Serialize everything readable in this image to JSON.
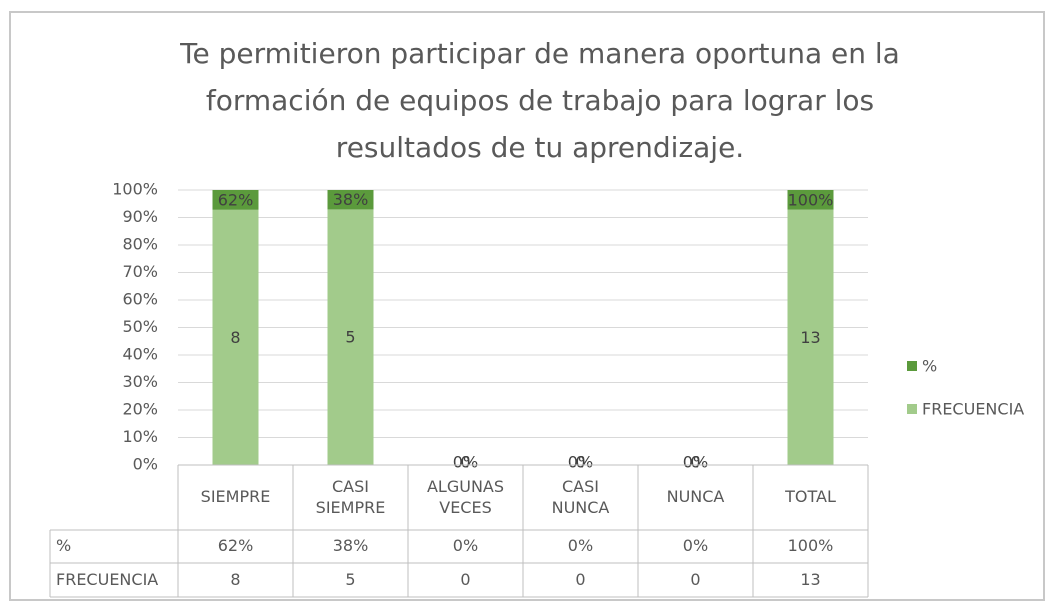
{
  "chart_data": {
    "type": "bar",
    "stacked": "percent",
    "title": "Te permitieron participar de manera oportuna en la formación de equipos de trabajo para lograr los resultados de tu aprendizaje.",
    "categories": [
      "SIEMPRE",
      "CASI SIEMPRE",
      "ALGUNAS VECES",
      "CASI NUNCA",
      "NUNCA",
      "TOTAL"
    ],
    "series": [
      {
        "name": "%",
        "color": "#5b9a3c",
        "values": [
          0.62,
          0.38,
          0,
          0,
          0,
          1
        ],
        "value_labels": [
          "62%",
          "38%",
          "0%",
          "0%",
          "0%",
          "100%"
        ]
      },
      {
        "name": "FRECUENCIA",
        "color": "#a2cb8b",
        "values": [
          8,
          5,
          0,
          0,
          0,
          13
        ]
      }
    ],
    "ylim": [
      0,
      100
    ],
    "yticks": [
      {
        "value": 0,
        "label": "0%"
      },
      {
        "value": 10,
        "label": "10%"
      },
      {
        "value": 20,
        "label": "20%"
      },
      {
        "value": 30,
        "label": "30%"
      },
      {
        "value": 40,
        "label": "40%"
      },
      {
        "value": 50,
        "label": "50%"
      },
      {
        "value": 60,
        "label": "60%"
      },
      {
        "value": 70,
        "label": "70%"
      },
      {
        "value": 80,
        "label": "80%"
      },
      {
        "value": 90,
        "label": "90%"
      },
      {
        "value": 100,
        "label": "100%"
      }
    ],
    "grid": true,
    "legend": "right",
    "data_table": true
  }
}
